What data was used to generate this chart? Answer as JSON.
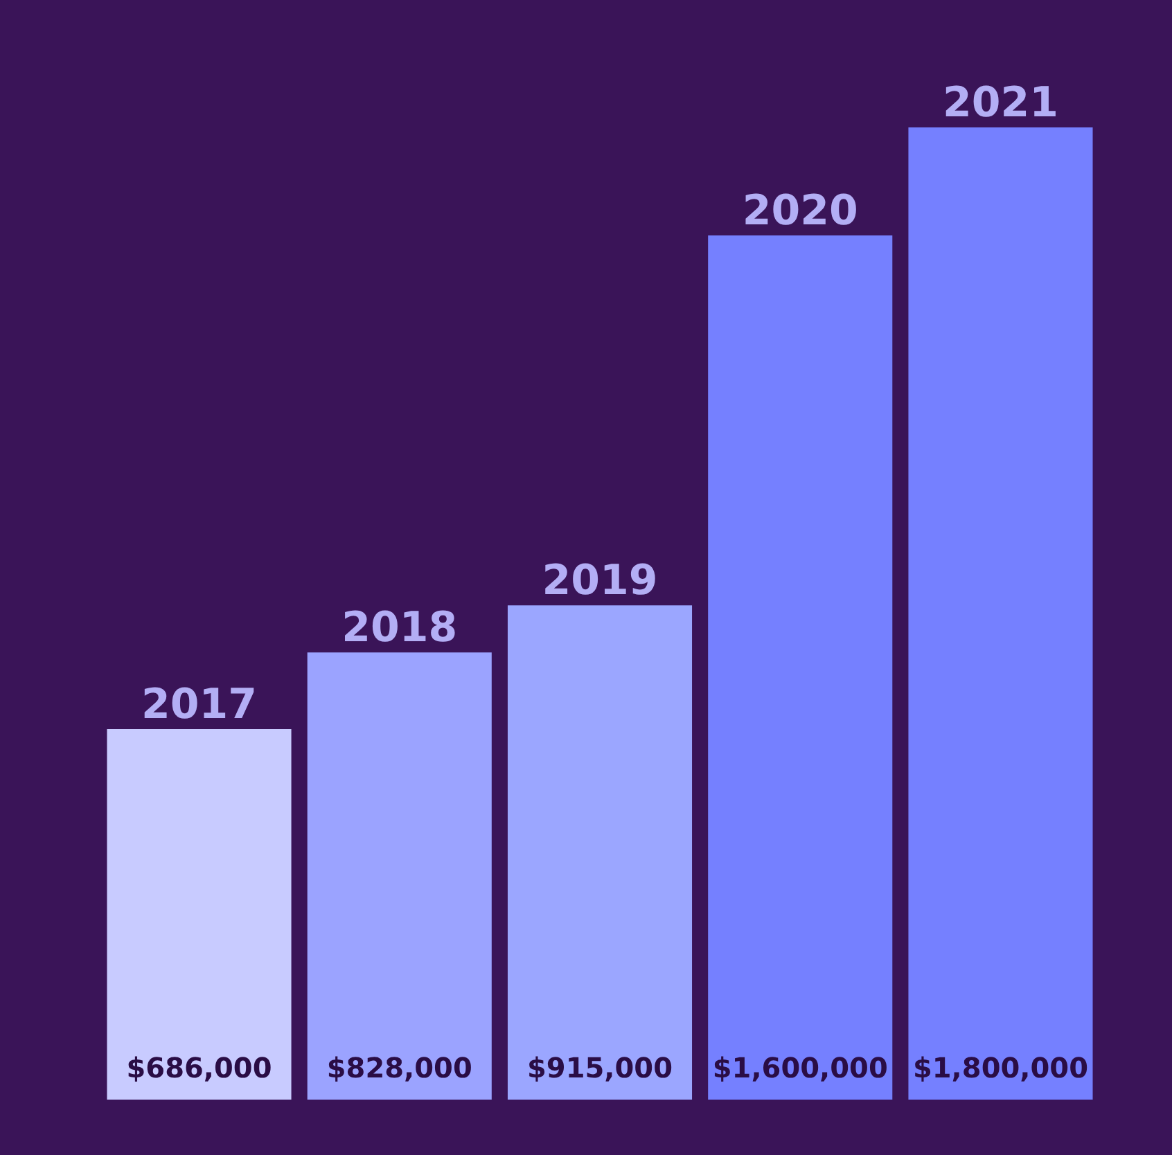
{
  "chart_data": {
    "type": "bar",
    "categories": [
      "2017",
      "2018",
      "2019",
      "2020",
      "2021"
    ],
    "values": [
      686000,
      828000,
      915000,
      1600000,
      1800000
    ],
    "colors": [
      "#c8cbff",
      "#9ba3ff",
      "#9ba6ff",
      "#7580ff",
      "#7580ff"
    ],
    "value_labels": [
      "$686,000",
      "$828,000",
      "$915,000",
      "$1,600,000",
      "$1,800,000"
    ],
    "grid": false
  }
}
